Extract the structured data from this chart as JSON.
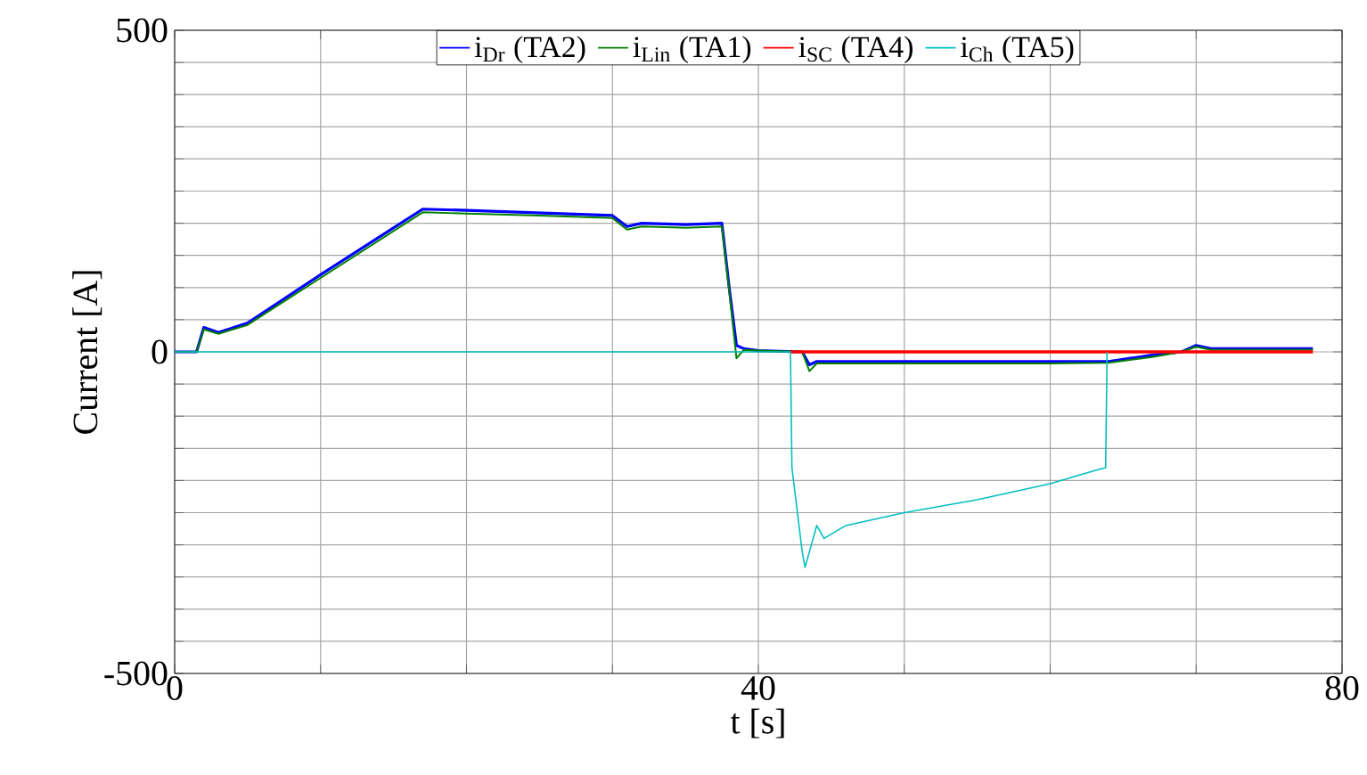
{
  "chart_data": {
    "type": "line",
    "xlabel": "t [s]",
    "ylabel": "Current [A]",
    "xlim": [
      0,
      80
    ],
    "ylim": [
      -500,
      500
    ],
    "xticks": [
      0,
      {
        "value": 10,
        "label": null
      },
      {
        "value": 20,
        "label": null
      },
      {
        "value": 30,
        "label": null
      },
      40,
      {
        "value": 50,
        "label": null
      },
      {
        "value": 60,
        "label": null
      },
      {
        "value": 70,
        "label": null
      },
      80
    ],
    "yticks": [
      -500,
      {
        "value": -450,
        "label": null
      },
      {
        "value": -400,
        "label": null
      },
      {
        "value": -350,
        "label": null
      },
      {
        "value": -300,
        "label": null
      },
      {
        "value": -250,
        "label": null
      },
      {
        "value": -200,
        "label": null
      },
      {
        "value": -150,
        "label": null
      },
      {
        "value": -100,
        "label": null
      },
      {
        "value": -50,
        "label": null
      },
      0,
      {
        "value": 50,
        "label": null
      },
      {
        "value": 100,
        "label": null
      },
      {
        "value": 150,
        "label": null
      },
      {
        "value": 200,
        "label": null
      },
      {
        "value": 250,
        "label": null
      },
      {
        "value": 300,
        "label": null
      },
      {
        "value": 350,
        "label": null
      },
      {
        "value": 400,
        "label": null
      },
      {
        "value": 450,
        "label": null
      },
      500
    ],
    "grid": true,
    "legend": "top",
    "marker": "none",
    "line_style": "solid",
    "series": [
      {
        "name": "i$_{Dr}$ (TA2)",
        "color": "#0000ff",
        "x": [
          0,
          1.5,
          2,
          3,
          5,
          10,
          17,
          20,
          25,
          30,
          31,
          32,
          35,
          37.5,
          38,
          38.5,
          39,
          40,
          43,
          43.5,
          44,
          50,
          60,
          64,
          67,
          69,
          70,
          71,
          78
        ],
        "values": [
          0,
          0,
          38,
          30,
          45,
          120,
          222,
          220,
          216,
          212,
          195,
          200,
          198,
          200,
          100,
          10,
          5,
          2,
          0,
          -20,
          -15,
          -15,
          -15,
          -15,
          -5,
          0,
          10,
          5,
          5
        ]
      },
      {
        "name": "i$_{Lin}$ (TA1)",
        "color": "#008000",
        "x": [
          0,
          1.5,
          2,
          3,
          5,
          10,
          17,
          20,
          25,
          30,
          31,
          32,
          35,
          37.5,
          38,
          38.5,
          39,
          40,
          43,
          43.5,
          44,
          50,
          60,
          64,
          67,
          69,
          70,
          71,
          78
        ],
        "values": [
          0,
          0,
          35,
          28,
          42,
          115,
          217,
          215,
          212,
          208,
          190,
          195,
          193,
          195,
          95,
          -10,
          3,
          2,
          0,
          -30,
          -18,
          -18,
          -18,
          -17,
          -8,
          0,
          8,
          3,
          3
        ]
      },
      {
        "name": "i$_{SC}$ (TA4)",
        "color": "#ff0000",
        "x": [
          42.2,
          78
        ],
        "values": [
          0,
          0
        ]
      },
      {
        "name": "i$_{Ch}$ (TA5)",
        "color": "#00bfbf",
        "x": [
          0,
          42.2,
          42.3,
          43,
          43.2,
          44,
          44.5,
          46,
          50,
          55,
          60,
          63,
          63.8,
          63.9
        ],
        "values": [
          0,
          0,
          -180,
          -310,
          -335,
          -270,
          -290,
          -270,
          -250,
          -230,
          -205,
          -185,
          -180,
          0
        ]
      }
    ]
  }
}
